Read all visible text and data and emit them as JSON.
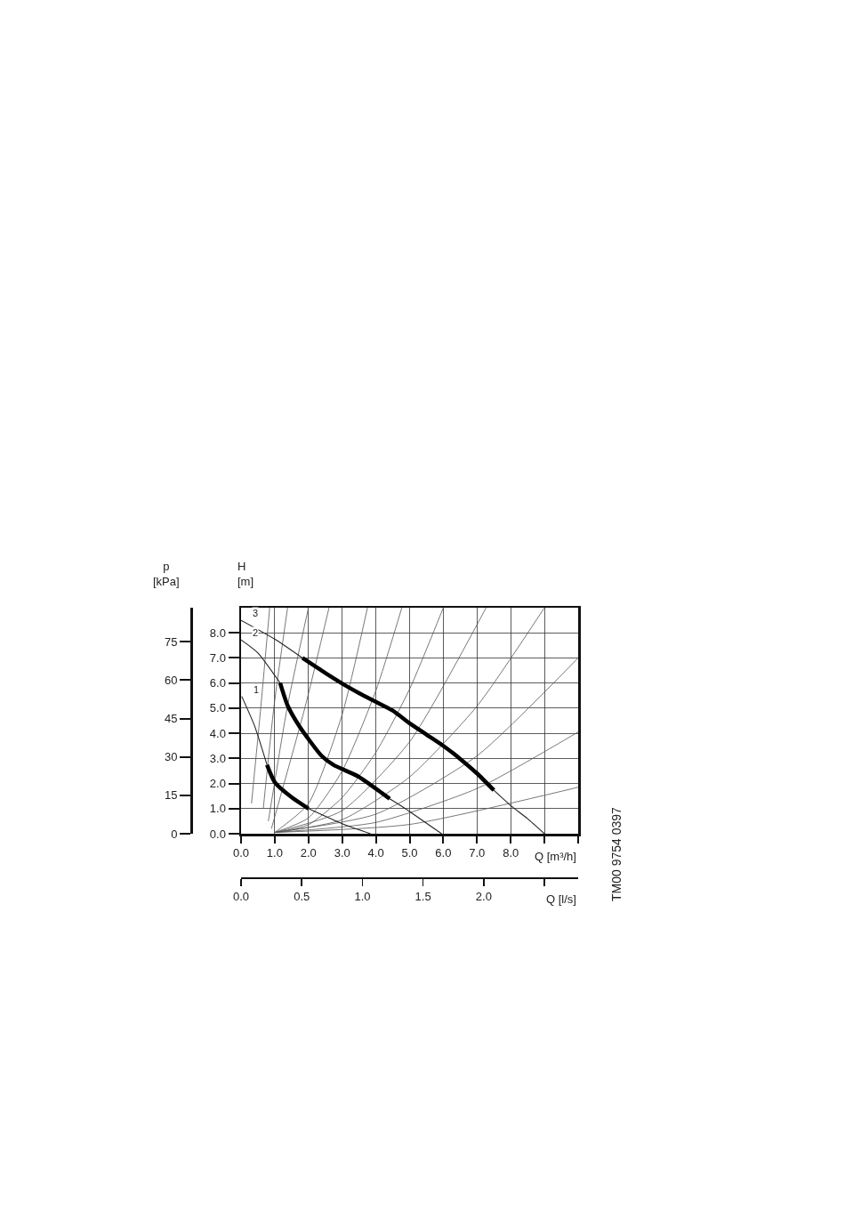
{
  "chart_data": {
    "type": "line",
    "xlabel": "Q [m³/h]",
    "ylabel": "H\n[m]",
    "y2label": "p\n[kPa]",
    "x2label": "Q [l/s]",
    "xlim": [
      0,
      10
    ],
    "xticks": [
      {
        "value": 0,
        "label": "0.0"
      },
      {
        "value": 1,
        "label": "1.0"
      },
      {
        "value": 2,
        "label": "2.0"
      },
      {
        "value": 3,
        "label": "3.0"
      },
      {
        "value": 4,
        "label": "4.0"
      },
      {
        "value": 5,
        "label": "5.0"
      },
      {
        "value": 6,
        "label": "6.0"
      },
      {
        "value": 7,
        "label": "7.0"
      },
      {
        "value": 8,
        "label": "8.0"
      },
      {
        "value": 9,
        "label": null
      },
      {
        "value": 10,
        "label": null
      }
    ],
    "ylim": [
      0,
      9
    ],
    "yticks": [
      {
        "value": 0,
        "label": "0.0"
      },
      {
        "value": 1,
        "label": "1.0"
      },
      {
        "value": 2,
        "label": "2.0"
      },
      {
        "value": 3,
        "label": "3.0"
      },
      {
        "value": 4,
        "label": "4.0"
      },
      {
        "value": 5,
        "label": "5.0"
      },
      {
        "value": 6,
        "label": "6.0"
      },
      {
        "value": 7,
        "label": "7.0"
      },
      {
        "value": 8,
        "label": "8.0"
      }
    ],
    "y2lim": [
      0,
      88.3
    ],
    "y2ticks": [
      0,
      15,
      30,
      45,
      60,
      75
    ],
    "x2lim": [
      0,
      2.778
    ],
    "x2ticks": [
      {
        "value": 0,
        "label": "0.0"
      },
      {
        "value": 0.5,
        "label": "0.5"
      },
      {
        "value": 1,
        "label": "1.0"
      },
      {
        "value": 1.5,
        "label": "1.5"
      },
      {
        "value": 2,
        "label": "2.0"
      },
      {
        "value": 2.5,
        "label": null
      }
    ],
    "grid": true,
    "legend": false,
    "marker": "none",
    "line_style": "solid",
    "annotations": [
      "TM00 9754 0397"
    ],
    "series": [
      {
        "color": "#555555",
        "x": [
          0.31,
          0.59,
          0.85
        ],
        "values": [
          1.2,
          5.1,
          9.0
        ]
      },
      {
        "color": "#555555",
        "x": [
          0.66,
          0.98,
          1.38
        ],
        "values": [
          1.0,
          5.1,
          9.0
        ]
      },
      {
        "color": "#555555",
        "x": [
          0.81,
          1.38,
          2.0
        ],
        "values": [
          0.5,
          5.1,
          9.0
        ]
      },
      {
        "color": "#555555",
        "x": [
          0.9,
          1.91,
          2.61
        ],
        "values": [
          0.2,
          5.1,
          9.0
        ]
      },
      {
        "color": "#555555",
        "x": [
          1.0,
          2.0,
          3.0,
          3.75
        ],
        "values": [
          0.05,
          1.2,
          4.75,
          9.0
        ]
      },
      {
        "color": "#555555",
        "x": [
          1.0,
          2.0,
          3.0,
          4.0,
          4.77
        ],
        "values": [
          0.05,
          0.63,
          2.5,
          5.7,
          9.0
        ]
      },
      {
        "color": "#555555",
        "x": [
          1.0,
          2.0,
          3.0,
          4.0,
          5.0,
          6.0
        ],
        "values": [
          0.05,
          0.36,
          1.44,
          3.24,
          5.76,
          9.0
        ]
      },
      {
        "color": "#555555",
        "x": [
          1.0,
          3.0,
          5.0,
          7.27
        ],
        "values": [
          0.05,
          0.92,
          3.66,
          9.0
        ]
      },
      {
        "color": "#555555",
        "x": [
          1.0,
          3.0,
          5.0,
          7.0,
          9.0
        ],
        "values": [
          0.05,
          0.56,
          2.26,
          5.08,
          9.0
        ]
      },
      {
        "color": "#555555",
        "x": [
          1.0,
          4.0,
          7.0,
          10.0
        ],
        "values": [
          0.05,
          0.78,
          3.1,
          7.0
        ]
      },
      {
        "color": "#555555",
        "x": [
          1.0,
          4.0,
          7.0,
          10.0
        ],
        "values": [
          0.05,
          0.45,
          1.8,
          4.05
        ]
      },
      {
        "color": "#555555",
        "x": [
          1.0,
          5.0,
          10.0
        ],
        "values": [
          0.05,
          0.37,
          1.85
        ]
      },
      {
        "name": "1",
        "color": "#222222",
        "x": [
          0.02,
          0.4,
          0.77,
          1.0,
          1.5,
          2.0,
          3.0,
          3.84
        ],
        "values": [
          5.47,
          4.3,
          2.74,
          null,
          null,
          1.0,
          0.4,
          0.0
        ]
      },
      {
        "name": "2",
        "color": "#222222",
        "x": [
          0.0,
          0.5,
          1.16,
          1.38,
          1.73,
          2.39,
          2.74,
          3.49,
          4.19,
          4.41,
          4.85,
          5.95
        ],
        "values": [
          7.72,
          7.2,
          6.0,
          null,
          null,
          null,
          null,
          null,
          null,
          1.39,
          1.02,
          0.0
        ]
      },
      {
        "name": "3",
        "color": "#222222",
        "x": [
          0.0,
          1.0,
          1.82,
          2.5,
          3.05,
          3.5,
          4.0,
          4.5,
          5.0,
          5.5,
          6.0,
          6.5,
          7.0,
          7.5,
          8.0,
          8.5,
          9.0
        ],
        "values": [
          8.5,
          7.75,
          7.0,
          null,
          null,
          null,
          null,
          null,
          null,
          null,
          null,
          null,
          null,
          1.73,
          1.12,
          0.6,
          0.0
        ]
      },
      {
        "color": "#000000",
        "x": [
          0.77,
          1.0,
          1.5,
          2.0
        ],
        "values": [
          2.74,
          2.05,
          1.45,
          1.0
        ]
      },
      {
        "color": "#000000",
        "x": [
          1.16,
          1.38,
          1.73,
          2.39,
          2.74,
          3.49,
          4.19,
          4.41
        ],
        "values": [
          6.0,
          5.11,
          4.28,
          3.1,
          2.74,
          2.27,
          1.61,
          1.39
        ]
      },
      {
        "color": "#000000",
        "x": [
          1.82,
          2.5,
          3.05,
          3.5,
          4.0,
          4.5,
          5.0,
          5.5,
          6.0,
          6.5,
          7.0,
          7.5
        ],
        "values": [
          7.0,
          6.4,
          5.94,
          5.6,
          5.25,
          4.9,
          4.4,
          3.95,
          3.5,
          2.98,
          2.4,
          1.73
        ]
      }
    ]
  }
}
